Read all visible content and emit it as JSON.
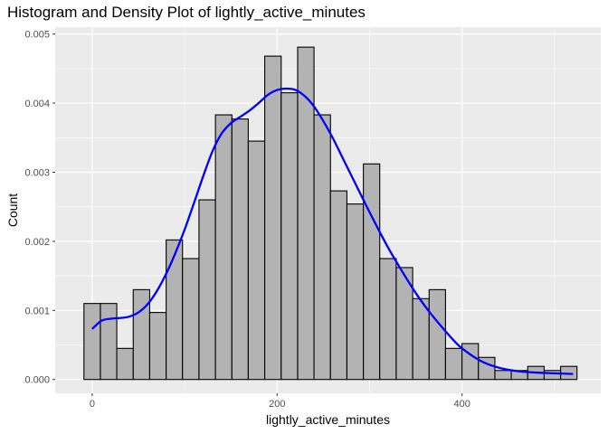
{
  "chart_data": {
    "type": "bar",
    "title": "Histogram and Density Plot of lightly_active_minutes",
    "xlabel": "lightly_active_minutes",
    "ylabel": "Count",
    "xlim": [
      -40,
      550
    ],
    "ylim": [
      -0.0002,
      0.0051
    ],
    "x_ticks": [
      0,
      200,
      400
    ],
    "y_ticks": [
      0.0,
      0.001,
      0.002,
      0.003,
      0.004,
      0.005
    ],
    "y_tick_labels": [
      "0.000",
      "0.001",
      "0.002",
      "0.003",
      "0.004",
      "0.005"
    ],
    "grid": true,
    "bins": [
      {
        "x0": -8.9,
        "x1": 8.9,
        "value": 0.0011
      },
      {
        "x0": 8.9,
        "x1": 26.6,
        "value": 0.0011
      },
      {
        "x0": 26.6,
        "x1": 44.4,
        "value": 0.00045
      },
      {
        "x0": 44.4,
        "x1": 62.2,
        "value": 0.0013
      },
      {
        "x0": 62.2,
        "x1": 80.0,
        "value": 0.00097
      },
      {
        "x0": 80.0,
        "x1": 97.7,
        "value": 0.00202
      },
      {
        "x0": 97.7,
        "x1": 115.5,
        "value": 0.00175
      },
      {
        "x0": 115.5,
        "x1": 133.3,
        "value": 0.0026
      },
      {
        "x0": 133.3,
        "x1": 151.1,
        "value": 0.00383
      },
      {
        "x0": 151.1,
        "x1": 168.8,
        "value": 0.00377
      },
      {
        "x0": 168.8,
        "x1": 186.6,
        "value": 0.00345
      },
      {
        "x0": 186.6,
        "x1": 204.4,
        "value": 0.00468
      },
      {
        "x0": 204.4,
        "x1": 222.2,
        "value": 0.00415
      },
      {
        "x0": 222.2,
        "x1": 239.9,
        "value": 0.00481
      },
      {
        "x0": 239.9,
        "x1": 257.7,
        "value": 0.00383
      },
      {
        "x0": 257.7,
        "x1": 275.5,
        "value": 0.00273
      },
      {
        "x0": 275.5,
        "x1": 293.3,
        "value": 0.00254
      },
      {
        "x0": 293.3,
        "x1": 311.0,
        "value": 0.00312
      },
      {
        "x0": 311.0,
        "x1": 328.8,
        "value": 0.00175
      },
      {
        "x0": 328.8,
        "x1": 346.6,
        "value": 0.00162
      },
      {
        "x0": 346.6,
        "x1": 364.4,
        "value": 0.00117
      },
      {
        "x0": 364.4,
        "x1": 382.1,
        "value": 0.0013
      },
      {
        "x0": 382.1,
        "x1": 399.9,
        "value": 0.00045
      },
      {
        "x0": 399.9,
        "x1": 417.7,
        "value": 0.00052
      },
      {
        "x0": 417.7,
        "x1": 435.5,
        "value": 0.00032
      },
      {
        "x0": 435.5,
        "x1": 453.2,
        "value": 0.00013
      },
      {
        "x0": 453.2,
        "x1": 471.0,
        "value": 0.00013
      },
      {
        "x0": 471.0,
        "x1": 488.8,
        "value": 0.00019
      },
      {
        "x0": 488.8,
        "x1": 506.6,
        "value": 0.00013
      },
      {
        "x0": 506.6,
        "x1": 524.3,
        "value": 0.00019
      }
    ],
    "density": {
      "x": [
        0,
        10,
        20,
        30,
        40,
        50,
        60,
        70,
        80,
        90,
        100,
        110,
        120,
        130,
        140,
        150,
        160,
        170,
        180,
        190,
        200,
        210,
        220,
        230,
        240,
        250,
        260,
        270,
        280,
        290,
        300,
        310,
        320,
        330,
        340,
        350,
        360,
        370,
        380,
        390,
        400,
        420,
        440,
        460,
        480,
        500,
        520
      ],
      "y": [
        0.00073,
        0.00085,
        0.00088,
        0.00089,
        0.00091,
        0.00097,
        0.00109,
        0.00128,
        0.00153,
        0.00183,
        0.00217,
        0.00255,
        0.00294,
        0.0033,
        0.00356,
        0.00371,
        0.0038,
        0.00389,
        0.004,
        0.00412,
        0.00419,
        0.00421,
        0.00419,
        0.0041,
        0.00395,
        0.00374,
        0.0035,
        0.00323,
        0.00296,
        0.00269,
        0.00242,
        0.00216,
        0.00191,
        0.00168,
        0.00146,
        0.00125,
        0.00106,
        0.00089,
        0.00073,
        0.00058,
        0.00045,
        0.00027,
        0.00017,
        0.00012,
        0.0001,
        9e-05,
        8e-05
      ],
      "color": "#0000ff"
    },
    "bar_fill": "#b3b3b3",
    "bar_stroke": "#000000",
    "panel_background": "#ebebeb",
    "grid_color": "#ffffff"
  }
}
